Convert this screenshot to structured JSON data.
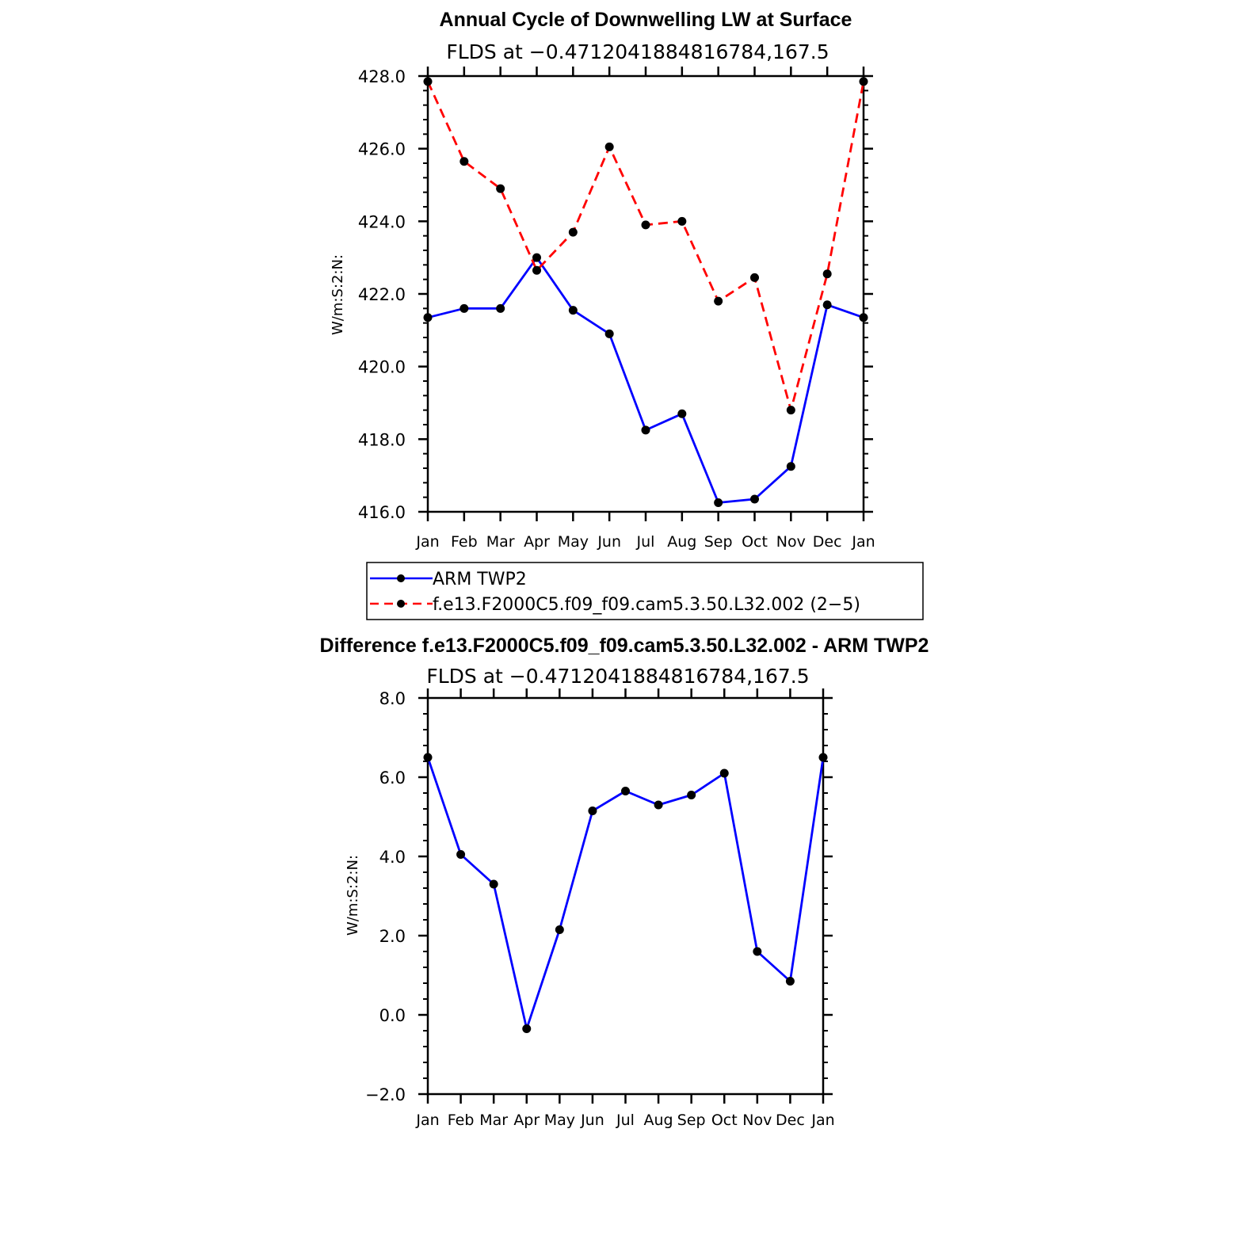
{
  "chart_data": [
    {
      "type": "line",
      "title": "Annual Cycle of Downwelling LW at Surface",
      "subtitle": "FLDS at −0.4712041884816784,167.5",
      "ylabel": "W/m:S:2:N:",
      "xlabel": "",
      "categories": [
        "Jan",
        "Feb",
        "Mar",
        "Apr",
        "May",
        "Jun",
        "Jul",
        "Aug",
        "Sep",
        "Oct",
        "Nov",
        "Dec",
        "Jan"
      ],
      "ylim": [
        416.0,
        428.0
      ],
      "ytick_labels": [
        "416.0",
        "418.0",
        "420.0",
        "422.0",
        "424.0",
        "426.0",
        "428.0"
      ],
      "legend_placement": "below",
      "grid": false,
      "series": [
        {
          "name": "ARM TWP2",
          "color": "#0000ff",
          "style": "solid",
          "values": [
            421.35,
            421.6,
            421.6,
            423.0,
            421.55,
            420.9,
            418.25,
            418.7,
            416.25,
            416.35,
            417.25,
            421.7,
            421.35
          ]
        },
        {
          "name": "f.e13.F2000C5.f09_f09.cam5.3.50.L32.002 (2−5)",
          "color": "#ff0000",
          "style": "dashed",
          "values": [
            427.85,
            425.65,
            424.9,
            422.65,
            423.7,
            426.05,
            423.9,
            424.0,
            421.8,
            422.45,
            418.8,
            422.55,
            427.85
          ]
        }
      ]
    },
    {
      "type": "line",
      "title": "Difference f.e13.F2000C5.f09_f09.cam5.3.50.L32.002 - ARM TWP2",
      "subtitle": "FLDS at −0.4712041884816784,167.5",
      "ylabel": "W/m:S:2:N:",
      "xlabel": "",
      "categories": [
        "Jan",
        "Feb",
        "Mar",
        "Apr",
        "May",
        "Jun",
        "Jul",
        "Aug",
        "Sep",
        "Oct",
        "Nov",
        "Dec",
        "Jan"
      ],
      "ylim": [
        -2.0,
        8.0
      ],
      "ytick_labels": [
        "−2.0",
        "0.0",
        "2.0",
        "4.0",
        "6.0",
        "8.0"
      ],
      "grid": false,
      "series": [
        {
          "color": "#0000ff",
          "style": "solid",
          "values": [
            6.5,
            4.05,
            3.3,
            -0.35,
            2.15,
            5.15,
            5.65,
            5.3,
            5.55,
            6.1,
            1.6,
            0.85,
            6.5
          ]
        }
      ]
    }
  ]
}
